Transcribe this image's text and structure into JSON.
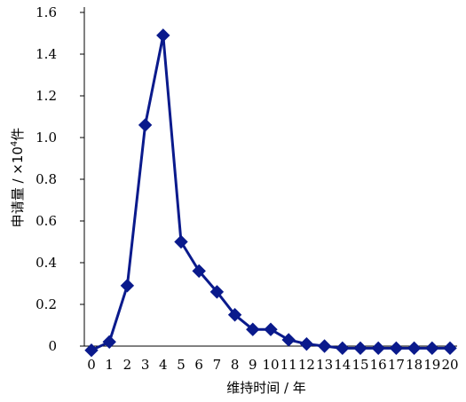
{
  "chart_data": {
    "type": "line",
    "xlabel": "维持时间 / 年",
    "ylabel": {
      "prefix": "申请量 / ×10",
      "exponent": "4",
      "suffix": "件"
    },
    "x": [
      0,
      1,
      2,
      3,
      4,
      5,
      6,
      7,
      8,
      9,
      10,
      11,
      12,
      13,
      14,
      15,
      16,
      17,
      18,
      19,
      20
    ],
    "xticks": [
      "0",
      "1",
      "2",
      "3",
      "4",
      "5",
      "6",
      "7",
      "8",
      "9",
      "10",
      "11",
      "12",
      "13",
      "14",
      "15",
      "16",
      "17",
      "18",
      "19",
      "20"
    ],
    "yticks": [
      "0",
      "0.2",
      "0.4",
      "0.6",
      "0.8",
      "1.0",
      "1.2",
      "1.4",
      "1.6"
    ],
    "ylim": [
      0,
      1.6
    ],
    "series": [
      {
        "values": [
          -0.02,
          0.02,
          0.29,
          1.06,
          1.49,
          0.5,
          0.36,
          0.26,
          0.15,
          0.08,
          0.08,
          0.03,
          0.01,
          0.0,
          -0.01,
          -0.01,
          -0.01,
          -0.01,
          -0.01,
          -0.01,
          -0.01
        ],
        "color": "#0a1a8c",
        "marker": "diamond"
      }
    ],
    "grid": false
  }
}
